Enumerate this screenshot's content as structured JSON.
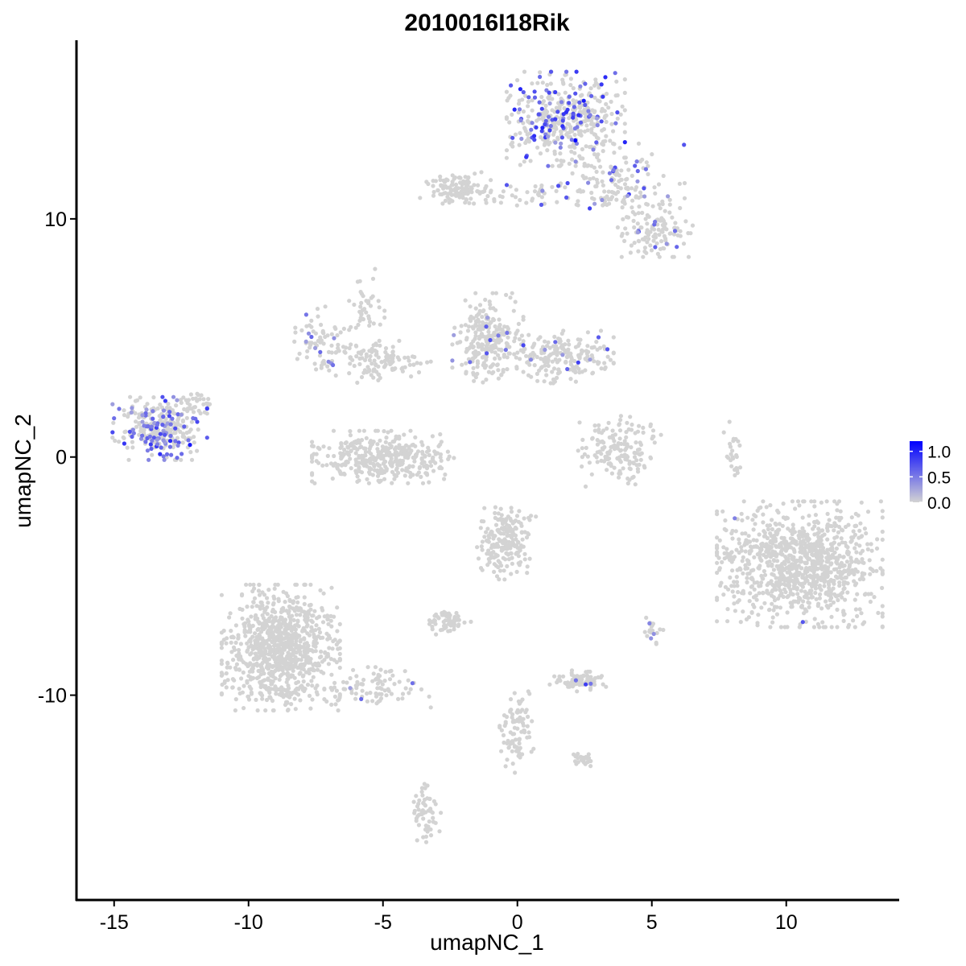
{
  "chart_data": {
    "type": "scatter",
    "title": "2010016I18Rik",
    "xlabel": "umapNC_1",
    "ylabel": "umapNC_2",
    "xlim": [
      -16.4,
      14.2
    ],
    "ylim": [
      -18.6,
      17.5
    ],
    "x_ticks": [
      -15,
      -10,
      -5,
      0,
      5,
      10
    ],
    "x_tick_labels": [
      "-15",
      "-10",
      "-5",
      "0",
      "5",
      "10"
    ],
    "y_ticks": [
      10,
      0,
      -10
    ],
    "y_tick_labels": [
      "10",
      "0",
      "-10"
    ],
    "grid": false,
    "legend_position": "right",
    "color_scale": {
      "low_color": "#d3d3d3",
      "high_color": "#0000ff",
      "min": 0.0,
      "max": 1.2,
      "ticks": [
        1.0,
        0.5,
        0.0
      ],
      "tick_labels": [
        "1.0",
        "0.5",
        "0.0"
      ]
    },
    "clusters": [
      {
        "cx": 1.8,
        "cy": 14.2,
        "sx": 1.0,
        "sy": 0.9,
        "n": 420,
        "expr_frac": 0.22,
        "expr_mean": 0.65
      },
      {
        "cx": 3.8,
        "cy": 11.4,
        "sx": 1.1,
        "sy": 0.8,
        "n": 160,
        "expr_frac": 0.1,
        "expr_mean": 0.55
      },
      {
        "cx": 5.2,
        "cy": 9.5,
        "sx": 0.6,
        "sy": 0.5,
        "n": 110,
        "expr_frac": 0.08,
        "expr_mean": 0.5
      },
      {
        "cx": -2.3,
        "cy": 11.3,
        "sx": 0.6,
        "sy": 0.3,
        "n": 110,
        "expr_frac": 0.0,
        "expr_mean": 0.0
      },
      {
        "cx": 0.0,
        "cy": 11.0,
        "sx": 1.0,
        "sy": 0.25,
        "n": 50,
        "expr_frac": 0.06,
        "expr_mean": 0.5
      },
      {
        "cx": -13.3,
        "cy": 1.2,
        "sx": 0.8,
        "sy": 0.6,
        "n": 300,
        "expr_frac": 0.3,
        "expr_mean": 0.55
      },
      {
        "cx": -12.0,
        "cy": 2.3,
        "sx": 0.4,
        "sy": 0.25,
        "n": 25,
        "expr_frac": 0.0,
        "expr_mean": 0.0
      },
      {
        "cx": -7.3,
        "cy": 5.0,
        "sx": 0.5,
        "sy": 0.6,
        "n": 70,
        "expr_frac": 0.12,
        "expr_mean": 0.5
      },
      {
        "cx": -5.2,
        "cy": 4.0,
        "sx": 0.9,
        "sy": 0.4,
        "n": 120,
        "expr_frac": 0.0,
        "expr_mean": 0.0
      },
      {
        "cx": -1.1,
        "cy": 4.9,
        "sx": 0.6,
        "sy": 0.9,
        "n": 260,
        "expr_frac": 0.05,
        "expr_mean": 0.5
      },
      {
        "cx": 1.6,
        "cy": 4.2,
        "sx": 0.9,
        "sy": 0.5,
        "n": 200,
        "expr_frac": 0.04,
        "expr_mean": 0.5
      },
      {
        "cx": -5.0,
        "cy": 0.0,
        "sx": 1.2,
        "sy": 0.5,
        "n": 380,
        "expr_frac": 0.003,
        "expr_mean": 0.5
      },
      {
        "cx": -5.6,
        "cy": 6.3,
        "sx": 0.3,
        "sy": 0.9,
        "n": 40,
        "expr_frac": 0.0,
        "expr_mean": 0.0
      },
      {
        "cx": 3.8,
        "cy": 0.3,
        "sx": 0.7,
        "sy": 0.7,
        "n": 160,
        "expr_frac": 0.0,
        "expr_mean": 0.0
      },
      {
        "cx": 10.5,
        "cy": -4.5,
        "sx": 1.4,
        "sy": 1.2,
        "n": 1000,
        "expr_frac": 0.002,
        "expr_mean": 0.6
      },
      {
        "cx": -0.4,
        "cy": -3.6,
        "sx": 0.5,
        "sy": 0.7,
        "n": 200,
        "expr_frac": 0.0,
        "expr_mean": 0.0
      },
      {
        "cx": -2.5,
        "cy": -6.9,
        "sx": 0.35,
        "sy": 0.25,
        "n": 60,
        "expr_frac": 0.0,
        "expr_mean": 0.0
      },
      {
        "cx": -8.8,
        "cy": -8.0,
        "sx": 1.0,
        "sy": 1.2,
        "n": 900,
        "expr_frac": 0.0,
        "expr_mean": 0.0
      },
      {
        "cx": -5.2,
        "cy": -9.7,
        "sx": 0.9,
        "sy": 0.4,
        "n": 90,
        "expr_frac": 0.02,
        "expr_mean": 0.5
      },
      {
        "cx": 2.2,
        "cy": -9.4,
        "sx": 0.5,
        "sy": 0.2,
        "n": 90,
        "expr_frac": 0.03,
        "expr_mean": 0.5
      },
      {
        "cx": 0.0,
        "cy": -11.6,
        "sx": 0.3,
        "sy": 0.8,
        "n": 90,
        "expr_frac": 0.0,
        "expr_mean": 0.0
      },
      {
        "cx": 2.4,
        "cy": -12.7,
        "sx": 0.2,
        "sy": 0.15,
        "n": 25,
        "expr_frac": 0.0,
        "expr_mean": 0.0
      },
      {
        "cx": -3.4,
        "cy": -14.9,
        "sx": 0.25,
        "sy": 0.6,
        "n": 60,
        "expr_frac": 0.0,
        "expr_mean": 0.0
      },
      {
        "cx": 8.0,
        "cy": 0.2,
        "sx": 0.15,
        "sy": 0.6,
        "n": 25,
        "expr_frac": 0.0,
        "expr_mean": 0.0
      },
      {
        "cx": 5.0,
        "cy": -7.3,
        "sx": 0.2,
        "sy": 0.25,
        "n": 20,
        "expr_frac": 0.1,
        "expr_mean": 0.5
      }
    ]
  }
}
